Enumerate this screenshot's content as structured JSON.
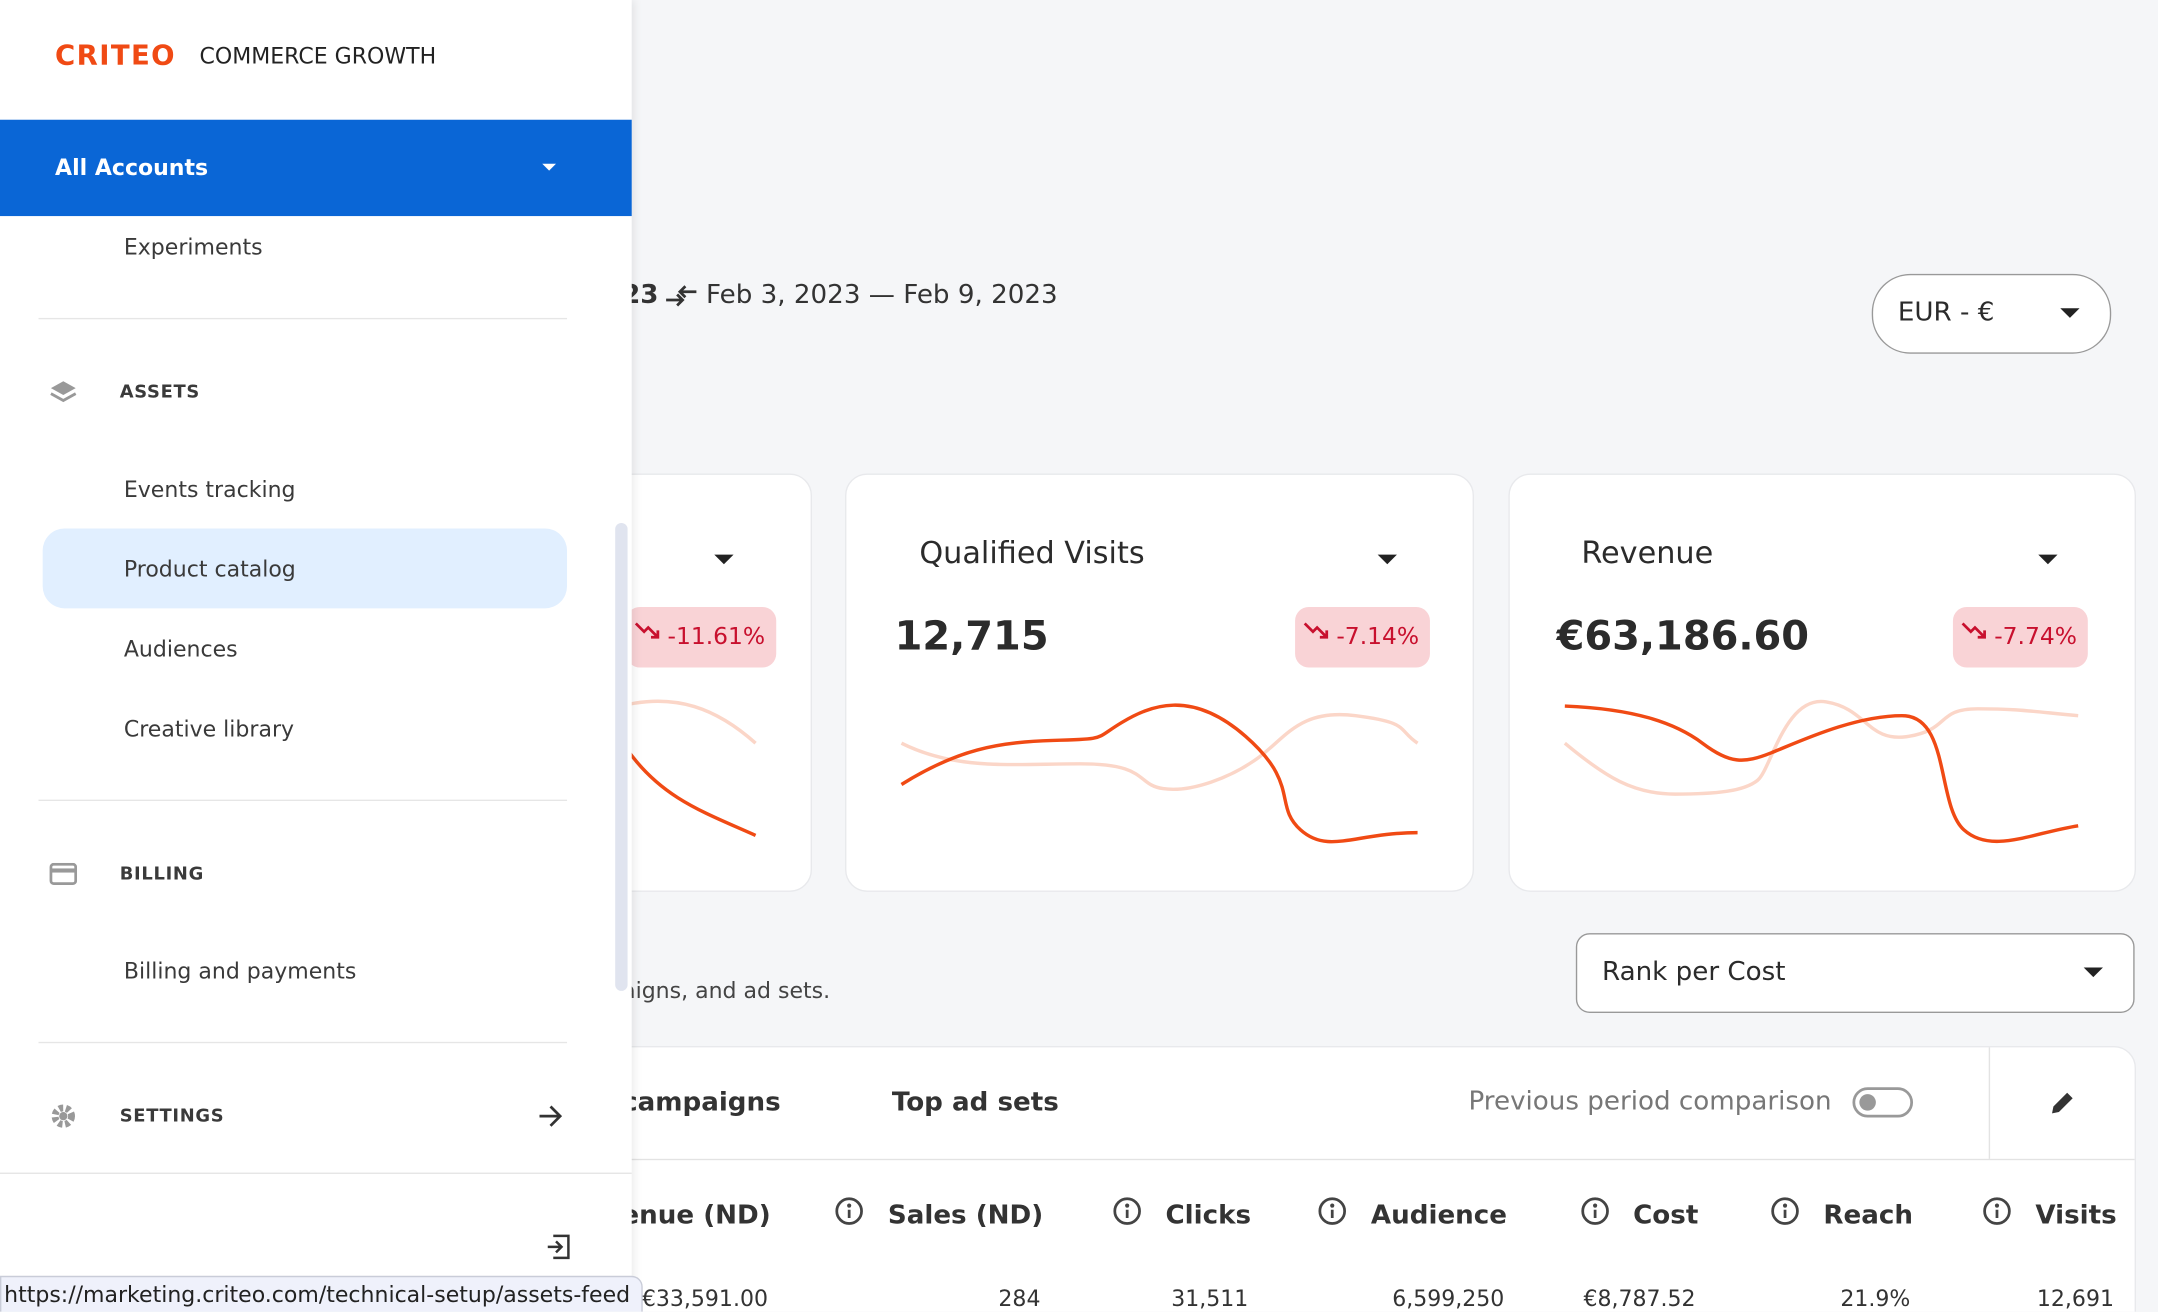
{
  "header": {
    "brand": "CRITEO",
    "product": "COMMERCE GROWTH"
  },
  "sidebar": {
    "account": "All Accounts",
    "top_item": "Experiments",
    "sections": [
      {
        "title": "ASSETS",
        "items": [
          "Events tracking",
          "Product catalog",
          "Audiences",
          "Creative library"
        ]
      },
      {
        "title": "BILLING",
        "items": [
          "Billing and payments"
        ]
      },
      {
        "title": "SETTINGS",
        "items": []
      }
    ]
  },
  "status_url": "https://marketing.criteo.com/technical-setup/assets-feed",
  "main": {
    "date_fragment": "23",
    "date_range": "Feb 3, 2023 — Feb 9, 2023",
    "currency": "EUR - €",
    "cards": [
      {
        "change": "-11.61%"
      },
      {
        "title": "Qualified Visits",
        "value": "12,715",
        "change": "-7.14%"
      },
      {
        "title": "Revenue",
        "value": "€63,186.60",
        "change": "-7.74%"
      }
    ],
    "subtitle_fragment": "aigns, and ad sets.",
    "rank": "Rank per Cost",
    "tabs": [
      "campaigns",
      "Top ad sets"
    ],
    "comparison": "Previous period comparison",
    "table": {
      "columns": [
        "venue (ND)",
        "Sales (ND)",
        "Clicks",
        "Audience",
        "Cost",
        "Reach",
        "Visits"
      ],
      "rows": [
        [
          "€33,591.00",
          "284",
          "31,511",
          "6,599,250",
          "€8,787.52",
          "21.9%",
          "12,691"
        ]
      ]
    }
  }
}
